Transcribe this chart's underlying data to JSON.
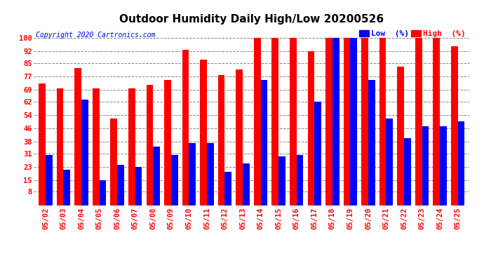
{
  "title": "Outdoor Humidity Daily High/Low 20200526",
  "copyright": "Copyright 2020 Cartronics.com",
  "legend_low": "Low  (%)",
  "legend_high": "High  (%)",
  "dates": [
    "05/02",
    "05/03",
    "05/04",
    "05/05",
    "05/06",
    "05/07",
    "05/08",
    "05/09",
    "05/10",
    "05/11",
    "05/12",
    "05/13",
    "05/14",
    "05/15",
    "05/16",
    "05/17",
    "05/18",
    "05/19",
    "05/20",
    "05/21",
    "05/22",
    "05/23",
    "05/24",
    "05/25"
  ],
  "high_values": [
    73,
    70,
    82,
    70,
    52,
    70,
    72,
    75,
    93,
    87,
    78,
    81,
    100,
    100,
    100,
    92,
    100,
    100,
    100,
    100,
    83,
    100,
    100,
    95
  ],
  "low_values": [
    30,
    21,
    63,
    15,
    24,
    23,
    35,
    30,
    37,
    37,
    20,
    25,
    75,
    29,
    30,
    62,
    100,
    100,
    75,
    52,
    40,
    47,
    47,
    50
  ],
  "high_color": "#ff0000",
  "low_color": "#0000ff",
  "background_color": "#ffffff",
  "plot_bg_color": "#ffffff",
  "grid_color": "#888888",
  "yticks": [
    8,
    15,
    23,
    31,
    38,
    46,
    54,
    62,
    69,
    77,
    85,
    92,
    100
  ],
  "ylim": [
    0,
    107
  ],
  "title_fontsize": 11,
  "tick_fontsize": 7.5,
  "bar_width": 0.38,
  "figsize": [
    6.9,
    3.75
  ],
  "dpi": 100
}
